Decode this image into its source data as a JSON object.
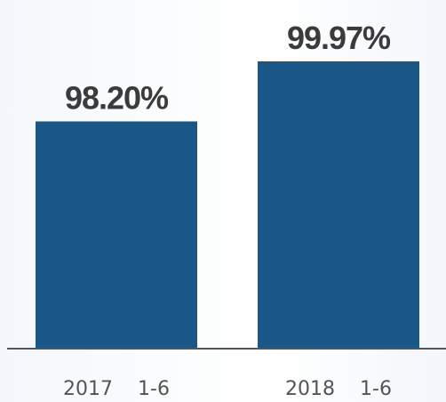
{
  "chart_data": {
    "type": "bar",
    "categories": [
      "2017    1-6",
      "2018    1-6"
    ],
    "values": [
      98.2,
      99.97
    ],
    "value_labels": [
      "98.20%",
      "99.97%"
    ],
    "title": "",
    "xlabel": "",
    "ylabel": "",
    "grid": false,
    "legend": "none",
    "colors": {
      "bar": "#1a5786",
      "value_label": "#3b3b3b",
      "tick_label": "#555555",
      "axis": "#555555"
    }
  }
}
